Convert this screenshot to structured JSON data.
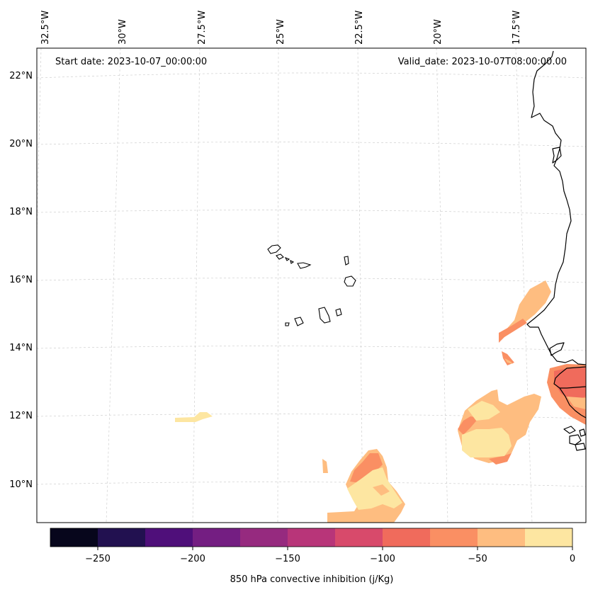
{
  "header": {
    "start_date": "Start date: 2023-10-07_00:00:00",
    "valid_date": "Valid_date: 2023-10-07T08:00:00.00"
  },
  "axes": {
    "lon_labels": [
      "32.5°W",
      "30°W",
      "27.5°W",
      "25°W",
      "22.5°W",
      "20°W",
      "17.5°W"
    ],
    "lat_labels": [
      "22°N",
      "20°N",
      "18°N",
      "16°N",
      "14°N",
      "12°N",
      "10°N"
    ]
  },
  "colorbar": {
    "label": "850 hPa convective inhibition (j/Kg)",
    "tick_labels": [
      "−250",
      "−200",
      "−150",
      "−100",
      "−50",
      "0"
    ],
    "levels": [
      -275,
      -250,
      -225,
      -200,
      -175,
      -150,
      -125,
      -100,
      -75,
      -50,
      -25,
      0
    ],
    "colors": [
      "#07061c",
      "#221150",
      "#4f0f7a",
      "#741e82",
      "#962a7f",
      "#b83579",
      "#d84a6b",
      "#f06b5c",
      "#fa8f63",
      "#febd80",
      "#fde6a1"
    ]
  },
  "map_colors": {
    "level_-25_0": "#fde6a1",
    "level_-50_-25": "#febd80",
    "level_-75_-50": "#fa8f63",
    "level_-100_-75": "#f06b5c"
  }
}
